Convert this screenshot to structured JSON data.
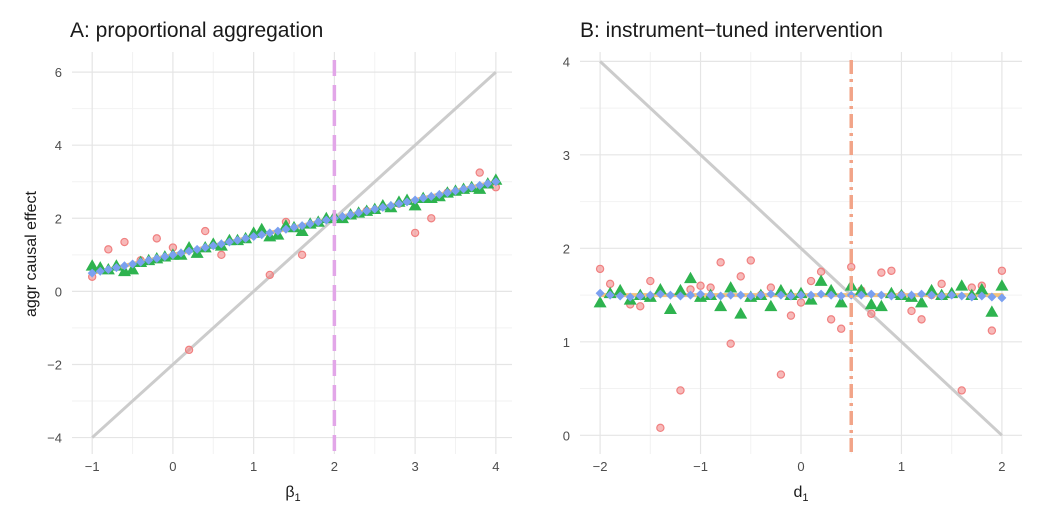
{
  "colors": {
    "grid_major": "#e5e5e5",
    "grid_minor": "#f2f2f2",
    "ref_line": "#cccccc",
    "vline_a": "#e2a6e8",
    "vline_b": "#f2a488",
    "red": "#f08080",
    "green": "#2eb34f",
    "blue": "#7aa0f0",
    "orange": "#f4c27a"
  },
  "chart_data": [
    {
      "type": "scatter",
      "title": "A: proportional aggregation",
      "xlabel": "β₁",
      "xlabel_base": "β",
      "xlabel_sub": "1",
      "ylabel": "aggr causal effect",
      "xlim": [
        -1.25,
        4.2
      ],
      "ylim": [
        -4.45,
        6.55
      ],
      "xticks": [
        -1,
        0,
        1,
        2,
        3,
        4
      ],
      "xtick_labels": [
        "−1",
        "0",
        "1",
        "2",
        "3",
        "4"
      ],
      "yticks": [
        -4,
        -2,
        0,
        2,
        4,
        6
      ],
      "ytick_labels": [
        "−4",
        "−2",
        "0",
        "2",
        "4",
        "6"
      ],
      "reference_line": {
        "label": "identity",
        "x": [
          -1,
          4
        ],
        "y": [
          -4,
          6
        ]
      },
      "vline": {
        "x": 2,
        "style": "dashed"
      },
      "series": [
        {
          "name": "red",
          "marker": "circle",
          "x": [
            -1.0,
            -0.8,
            -0.6,
            -0.4,
            -0.2,
            0.0,
            0.2,
            0.4,
            0.6,
            1.2,
            1.4,
            1.6,
            2.4,
            2.8,
            3.0,
            3.2,
            3.4,
            3.8,
            4.0
          ],
          "y": [
            0.4,
            1.15,
            1.35,
            0.85,
            1.45,
            1.2,
            -1.6,
            1.65,
            1.0,
            0.45,
            1.9,
            1.0,
            2.2,
            2.4,
            1.6,
            2.0,
            2.7,
            3.25,
            2.85
          ]
        },
        {
          "name": "green",
          "marker": "triangle",
          "x": [
            -1.0,
            -0.9,
            -0.8,
            -0.7,
            -0.6,
            -0.5,
            -0.4,
            -0.3,
            -0.2,
            -0.1,
            0.0,
            0.1,
            0.2,
            0.3,
            0.4,
            0.5,
            0.6,
            0.7,
            0.8,
            0.9,
            1.0,
            1.1,
            1.2,
            1.3,
            1.4,
            1.5,
            1.6,
            1.7,
            1.8,
            1.9,
            2.0,
            2.1,
            2.2,
            2.3,
            2.4,
            2.5,
            2.6,
            2.7,
            2.8,
            2.9,
            3.0,
            3.1,
            3.2,
            3.3,
            3.4,
            3.5,
            3.6,
            3.7,
            3.8,
            3.9,
            4.0
          ],
          "y": [
            0.7,
            0.65,
            0.6,
            0.7,
            0.55,
            0.6,
            0.8,
            0.85,
            0.9,
            0.95,
            1.0,
            1.0,
            1.2,
            1.05,
            1.2,
            1.3,
            1.25,
            1.4,
            1.4,
            1.45,
            1.6,
            1.7,
            1.5,
            1.55,
            1.8,
            1.75,
            1.65,
            1.85,
            1.9,
            2.0,
            2.05,
            2.0,
            2.1,
            2.15,
            2.2,
            2.25,
            2.35,
            2.3,
            2.45,
            2.5,
            2.35,
            2.55,
            2.55,
            2.6,
            2.7,
            2.75,
            2.8,
            2.85,
            2.8,
            2.95,
            3.05
          ]
        },
        {
          "name": "blue",
          "marker": "diamond",
          "x": [
            -1.0,
            -0.9,
            -0.8,
            -0.7,
            -0.6,
            -0.5,
            -0.4,
            -0.3,
            -0.2,
            -0.1,
            0.0,
            0.1,
            0.2,
            0.3,
            0.4,
            0.5,
            0.6,
            0.7,
            0.8,
            0.9,
            1.0,
            1.1,
            1.2,
            1.3,
            1.4,
            1.5,
            1.6,
            1.7,
            1.8,
            1.9,
            2.0,
            2.1,
            2.2,
            2.3,
            2.4,
            2.5,
            2.6,
            2.7,
            2.8,
            2.9,
            3.0,
            3.1,
            3.2,
            3.3,
            3.4,
            3.5,
            3.6,
            3.7,
            3.8,
            3.9,
            4.0
          ],
          "y": [
            0.5,
            0.55,
            0.6,
            0.65,
            0.7,
            0.75,
            0.8,
            0.85,
            0.9,
            0.95,
            1.0,
            1.05,
            1.1,
            1.15,
            1.2,
            1.25,
            1.3,
            1.35,
            1.4,
            1.45,
            1.5,
            1.55,
            1.6,
            1.65,
            1.7,
            1.75,
            1.8,
            1.85,
            1.9,
            1.95,
            2.0,
            2.05,
            2.1,
            2.15,
            2.2,
            2.25,
            2.3,
            2.35,
            2.4,
            2.45,
            2.5,
            2.55,
            2.6,
            2.65,
            2.7,
            2.75,
            2.8,
            2.85,
            2.9,
            2.95,
            3.0
          ]
        },
        {
          "name": "orange",
          "marker": "line",
          "x": [
            -1,
            4
          ],
          "y": [
            0.5,
            3.0
          ]
        }
      ]
    },
    {
      "type": "scatter",
      "title": "B: instrument−tuned intervention",
      "xlabel": "d₁",
      "xlabel_base": "d",
      "xlabel_sub": "1",
      "ylabel": "",
      "xlim": [
        -2.2,
        2.2
      ],
      "ylim": [
        -0.2,
        4.1
      ],
      "xticks": [
        -2,
        -1,
        0,
        1,
        2
      ],
      "xtick_labels": [
        "−2",
        "−1",
        "0",
        "1",
        "2"
      ],
      "yticks": [
        0,
        1,
        2,
        3,
        4
      ],
      "ytick_labels": [
        "0",
        "1",
        "2",
        "3",
        "4"
      ],
      "reference_line": {
        "label": "identity",
        "x": [
          -2,
          2
        ],
        "y": [
          4,
          0
        ]
      },
      "vline": {
        "x": 0.5,
        "style": "dashdot"
      },
      "series": [
        {
          "name": "red",
          "marker": "circle",
          "x": [
            -2.0,
            -1.9,
            -1.7,
            -1.6,
            -1.5,
            -1.4,
            -1.2,
            -1.1,
            -1.0,
            -0.9,
            -0.8,
            -0.7,
            -0.6,
            -0.5,
            -0.4,
            -0.3,
            -0.2,
            -0.1,
            0.0,
            0.1,
            0.2,
            0.3,
            0.4,
            0.5,
            0.6,
            0.7,
            0.8,
            0.9,
            1.0,
            1.1,
            1.2,
            1.3,
            1.4,
            1.6,
            1.7,
            1.8,
            1.9,
            2.0
          ],
          "y": [
            1.78,
            1.62,
            1.4,
            1.38,
            1.65,
            0.08,
            0.48,
            1.56,
            1.6,
            1.58,
            1.85,
            0.98,
            1.7,
            1.87,
            1.5,
            1.58,
            0.65,
            1.28,
            1.42,
            1.65,
            1.75,
            1.24,
            1.14,
            1.8,
            1.55,
            1.3,
            1.74,
            1.76,
            1.5,
            1.33,
            1.24,
            1.5,
            1.62,
            0.48,
            1.58,
            1.6,
            1.12,
            1.76
          ]
        },
        {
          "name": "green",
          "marker": "triangle",
          "x": [
            -2.0,
            -1.9,
            -1.8,
            -1.7,
            -1.6,
            -1.5,
            -1.4,
            -1.3,
            -1.2,
            -1.1,
            -1.0,
            -0.9,
            -0.8,
            -0.7,
            -0.6,
            -0.5,
            -0.4,
            -0.3,
            -0.2,
            -0.1,
            0.0,
            0.1,
            0.2,
            0.3,
            0.4,
            0.5,
            0.6,
            0.7,
            0.8,
            0.9,
            1.0,
            1.1,
            1.2,
            1.3,
            1.4,
            1.5,
            1.6,
            1.7,
            1.8,
            1.9,
            2.0
          ],
          "y": [
            1.42,
            1.52,
            1.55,
            1.45,
            1.5,
            1.48,
            1.56,
            1.35,
            1.55,
            1.68,
            1.48,
            1.5,
            1.38,
            1.58,
            1.3,
            1.48,
            1.5,
            1.38,
            1.55,
            1.5,
            1.52,
            1.45,
            1.65,
            1.55,
            1.42,
            1.6,
            1.55,
            1.4,
            1.38,
            1.52,
            1.5,
            1.48,
            1.42,
            1.55,
            1.5,
            1.52,
            1.6,
            1.5,
            1.56,
            1.32,
            1.6
          ]
        },
        {
          "name": "blue",
          "marker": "diamond",
          "x": [
            -2.0,
            -1.9,
            -1.8,
            -1.7,
            -1.6,
            -1.5,
            -1.4,
            -1.3,
            -1.2,
            -1.1,
            -1.0,
            -0.9,
            -0.8,
            -0.7,
            -0.6,
            -0.5,
            -0.4,
            -0.3,
            -0.2,
            -0.1,
            0.0,
            0.1,
            0.2,
            0.3,
            0.4,
            0.5,
            0.6,
            0.7,
            0.8,
            0.9,
            1.0,
            1.1,
            1.2,
            1.3,
            1.4,
            1.5,
            1.6,
            1.7,
            1.8,
            1.9,
            2.0
          ],
          "y": [
            1.52,
            1.5,
            1.49,
            1.48,
            1.49,
            1.5,
            1.51,
            1.5,
            1.49,
            1.5,
            1.51,
            1.5,
            1.49,
            1.5,
            1.5,
            1.49,
            1.5,
            1.51,
            1.5,
            1.49,
            1.5,
            1.5,
            1.51,
            1.5,
            1.49,
            1.5,
            1.5,
            1.51,
            1.5,
            1.49,
            1.5,
            1.5,
            1.51,
            1.5,
            1.49,
            1.5,
            1.49,
            1.48,
            1.49,
            1.48,
            1.47
          ]
        },
        {
          "name": "orange",
          "marker": "line",
          "x": [
            -2,
            2
          ],
          "y": [
            1.5,
            1.5
          ]
        }
      ]
    }
  ]
}
